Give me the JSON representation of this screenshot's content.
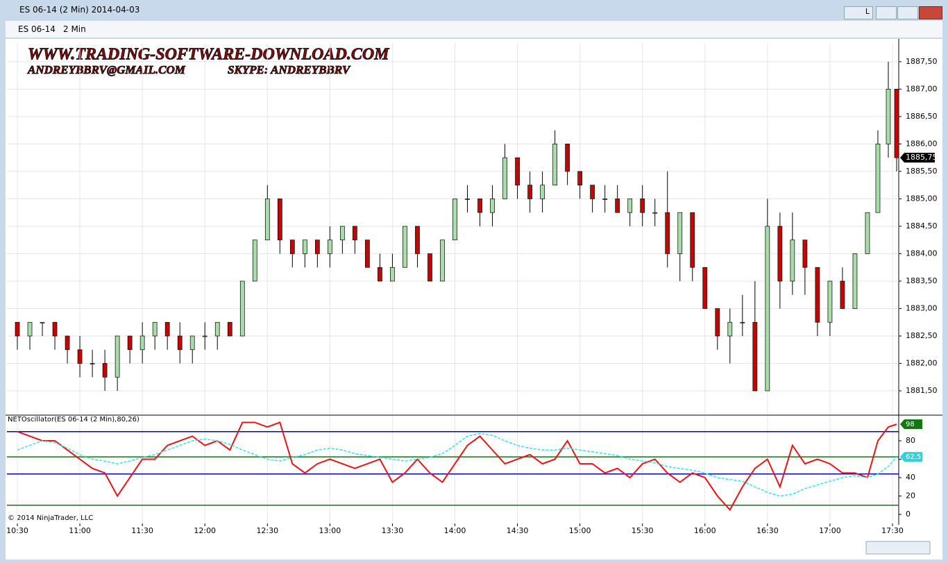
{
  "window": {
    "title": "ES 06-14 (2 Min)  2014-04-03",
    "instrument": "ES 06-14",
    "period": "2 Min",
    "lock": "L"
  },
  "watermark": {
    "line1": "WWW.TRADING-SOFTWARE-DOWNLOAD.COM",
    "line2a": "ANDREYBBRV@GMAIL.COM",
    "line2b": "SKYPE: ANDREYBBRV"
  },
  "copyright": "© 2014 NinjaTrader, LLC",
  "chart_data": [
    {
      "type": "candlestick",
      "up_color": "#a8dca8",
      "down_color": "#cc0000",
      "last_label": "1885,75",
      "x": [
        0,
        6,
        12,
        18,
        24,
        30,
        36,
        42,
        48,
        54,
        60,
        66,
        72,
        78,
        84,
        90,
        96,
        102,
        108,
        114,
        120,
        126,
        132,
        138,
        144,
        150,
        156,
        162,
        168,
        174,
        180,
        186,
        192,
        198,
        204,
        210,
        216,
        222,
        228,
        234,
        240,
        246,
        252,
        258,
        264,
        270,
        276,
        282,
        288,
        294,
        300,
        306,
        312,
        318,
        324,
        330,
        336,
        342,
        348,
        354,
        360,
        366,
        372,
        378,
        384,
        390,
        396,
        402,
        408,
        413,
        418,
        422
      ],
      "open": [
        1882.75,
        1882.5,
        1882.75,
        1882.75,
        1882.5,
        1882.25,
        1882.0,
        1882.0,
        1881.75,
        1882.5,
        1882.25,
        1882.5,
        1882.75,
        1882.5,
        1882.25,
        1882.5,
        1882.5,
        1882.75,
        1882.5,
        1883.5,
        1884.25,
        1885.0,
        1884.25,
        1884.0,
        1884.25,
        1884.0,
        1884.25,
        1884.5,
        1884.25,
        1883.75,
        1883.5,
        1883.75,
        1884.5,
        1884.0,
        1883.5,
        1884.25,
        1885.0,
        1885.0,
        1884.75,
        1885.0,
        1885.75,
        1885.25,
        1885.0,
        1885.25,
        1886.0,
        1885.5,
        1885.25,
        1885.0,
        1885.0,
        1884.75,
        1885.0,
        1884.75,
        1884.75,
        1884.0,
        1884.75,
        1883.75,
        1883.0,
        1882.5,
        1882.75,
        1882.75,
        1881.5,
        1884.5,
        1883.5,
        1884.25,
        1883.75,
        1882.75,
        1883.5,
        1883.0,
        1884.0,
        1884.75,
        1886.0,
        1887.0
      ],
      "high": [
        1882.75,
        1882.75,
        1882.75,
        1882.75,
        1882.5,
        1882.5,
        1882.25,
        1882.25,
        1882.5,
        1882.5,
        1882.75,
        1882.75,
        1882.75,
        1882.75,
        1882.5,
        1882.75,
        1882.75,
        1882.75,
        1883.5,
        1884.25,
        1885.25,
        1885.0,
        1884.25,
        1884.25,
        1884.25,
        1884.5,
        1884.5,
        1884.5,
        1884.25,
        1884.0,
        1884.0,
        1884.5,
        1884.5,
        1884.0,
        1884.25,
        1885.0,
        1885.25,
        1885.0,
        1885.25,
        1886.0,
        1885.75,
        1885.5,
        1885.5,
        1886.25,
        1886.0,
        1885.5,
        1885.25,
        1885.25,
        1885.25,
        1885.0,
        1885.25,
        1885.0,
        1885.5,
        1884.75,
        1884.75,
        1883.75,
        1883.0,
        1883.0,
        1883.25,
        1883.5,
        1885.0,
        1884.75,
        1884.75,
        1884.25,
        1883.75,
        1883.5,
        1883.75,
        1884.0,
        1884.75,
        1886.25,
        1887.5,
        1887.0
      ],
      "low": [
        1882.25,
        1882.25,
        1882.5,
        1882.25,
        1882.0,
        1881.75,
        1881.75,
        1881.5,
        1881.5,
        1882.0,
        1882.0,
        1882.25,
        1882.25,
        1882.0,
        1882.0,
        1882.25,
        1882.25,
        1882.5,
        1882.5,
        1883.5,
        1884.25,
        1884.0,
        1883.75,
        1883.75,
        1883.75,
        1883.75,
        1884.0,
        1884.0,
        1883.75,
        1883.5,
        1883.5,
        1883.75,
        1883.75,
        1883.5,
        1883.5,
        1884.25,
        1884.75,
        1884.5,
        1884.5,
        1885.0,
        1885.0,
        1884.75,
        1884.75,
        1885.25,
        1885.25,
        1885.0,
        1884.75,
        1884.75,
        1884.75,
        1884.5,
        1884.5,
        1884.5,
        1883.75,
        1883.5,
        1883.5,
        1883.0,
        1882.25,
        1882.0,
        1882.5,
        1881.5,
        1881.5,
        1883.0,
        1883.25,
        1883.25,
        1882.5,
        1882.5,
        1883.0,
        1883.0,
        1884.0,
        1884.75,
        1885.75,
        1885.5
      ],
      "close": [
        1882.5,
        1882.75,
        1882.75,
        1882.5,
        1882.25,
        1882.0,
        1882.0,
        1881.75,
        1882.5,
        1882.25,
        1882.5,
        1882.75,
        1882.5,
        1882.25,
        1882.5,
        1882.5,
        1882.75,
        1882.5,
        1883.5,
        1884.25,
        1885.0,
        1884.25,
        1884.0,
        1884.25,
        1884.0,
        1884.25,
        1884.5,
        1884.25,
        1883.75,
        1883.5,
        1883.75,
        1884.5,
        1884.0,
        1883.5,
        1884.25,
        1885.0,
        1885.0,
        1884.75,
        1885.0,
        1885.75,
        1885.25,
        1885.0,
        1885.25,
        1886.0,
        1885.5,
        1885.25,
        1885.0,
        1885.0,
        1884.75,
        1885.0,
        1884.75,
        1884.75,
        1884.0,
        1884.75,
        1883.75,
        1883.0,
        1882.5,
        1882.75,
        1882.75,
        1881.5,
        1884.5,
        1883.5,
        1884.25,
        1883.75,
        1882.75,
        1883.5,
        1883.0,
        1884.0,
        1884.75,
        1886.0,
        1887.0,
        1885.75
      ],
      "xlim": [
        -5,
        423
      ],
      "ylim": [
        1881.07,
        1887.84
      ],
      "yticks": [
        {
          "value": 1881.5,
          "label": "1881,50"
        },
        {
          "value": 1882,
          "label": "1882,00"
        },
        {
          "value": 1882.5,
          "label": "1882,50"
        },
        {
          "value": 1883,
          "label": "1883,00"
        },
        {
          "value": 1883.5,
          "label": "1883,50"
        },
        {
          "value": 1884,
          "label": "1884,00"
        },
        {
          "value": 1884.5,
          "label": "1884,50"
        },
        {
          "value": 1885,
          "label": "1885,00"
        },
        {
          "value": 1885.5,
          "label": "1885,50"
        },
        {
          "value": 1886,
          "label": "1886,00"
        },
        {
          "value": 1886.5,
          "label": "1886,50"
        },
        {
          "value": 1887,
          "label": "1887,00"
        },
        {
          "value": 1887.5,
          "label": "1887,50"
        }
      ],
      "grid": true
    },
    {
      "type": "line",
      "title": "NETOscillator(ES 06-14 (2 Min),80,26)",
      "x": [
        0,
        6,
        12,
        18,
        24,
        30,
        36,
        42,
        48,
        54,
        60,
        66,
        72,
        78,
        84,
        90,
        96,
        102,
        108,
        114,
        120,
        126,
        132,
        138,
        144,
        150,
        156,
        162,
        168,
        174,
        180,
        186,
        192,
        198,
        204,
        210,
        216,
        222,
        228,
        234,
        240,
        246,
        252,
        258,
        264,
        270,
        276,
        282,
        288,
        294,
        300,
        306,
        312,
        318,
        324,
        330,
        336,
        342,
        348,
        354,
        360,
        366,
        372,
        378,
        384,
        390,
        396,
        402,
        408,
        413,
        418,
        422
      ],
      "series": [
        {
          "name": "NETOscillator",
          "color": "#ee1111",
          "values": [
            90,
            85,
            80,
            80,
            70,
            60,
            50,
            45,
            20,
            40,
            60,
            60,
            75,
            80,
            85,
            75,
            80,
            70,
            100,
            100,
            95,
            100,
            55,
            45,
            55,
            60,
            55,
            50,
            55,
            60,
            35,
            45,
            60,
            45,
            35,
            55,
            75,
            85,
            70,
            55,
            60,
            65,
            55,
            60,
            80,
            55,
            55,
            45,
            50,
            40,
            55,
            60,
            45,
            35,
            45,
            40,
            20,
            5,
            30,
            50,
            60,
            30,
            75,
            55,
            60,
            55,
            45,
            45,
            40,
            80,
            95,
            98
          ]
        },
        {
          "name": "Signal",
          "color": "#33e0f0",
          "dash": true,
          "end_label": "62,5",
          "values": [
            70,
            75,
            80,
            78,
            72,
            65,
            60,
            58,
            55,
            58,
            62,
            65,
            70,
            75,
            80,
            82,
            80,
            76,
            70,
            65,
            60,
            58,
            62,
            65,
            70,
            72,
            70,
            66,
            64,
            62,
            60,
            58,
            60,
            62,
            66,
            75,
            85,
            88,
            86,
            80,
            75,
            72,
            70,
            70,
            72,
            70,
            68,
            66,
            64,
            60,
            58,
            56,
            52,
            50,
            48,
            45,
            40,
            38,
            36,
            30,
            24,
            20,
            22,
            28,
            32,
            36,
            40,
            42,
            40,
            44,
            52,
            62.5
          ]
        }
      ],
      "levels": [
        {
          "value": 90,
          "color": "#0000cc"
        },
        {
          "value": 62.5,
          "color": "#117711"
        },
        {
          "value": 44,
          "color": "#0000cc"
        },
        {
          "value": 10,
          "color": "#117711"
        }
      ],
      "xlim": [
        -5,
        423
      ],
      "ylim": [
        -8.3,
        106.4
      ],
      "yticks": [
        0,
        20,
        40,
        60,
        80
      ],
      "xticks": [
        {
          "value": 0,
          "label": "10:30"
        },
        {
          "value": 30,
          "label": "11:00"
        },
        {
          "value": 60,
          "label": "11:30"
        },
        {
          "value": 90,
          "label": "12:00"
        },
        {
          "value": 120,
          "label": "12:30"
        },
        {
          "value": 150,
          "label": "13:00"
        },
        {
          "value": 180,
          "label": "13:30"
        },
        {
          "value": 210,
          "label": "14:00"
        },
        {
          "value": 240,
          "label": "14:30"
        },
        {
          "value": 270,
          "label": "15:00"
        },
        {
          "value": 300,
          "label": "15:30"
        },
        {
          "value": 330,
          "label": "16:00"
        },
        {
          "value": 360,
          "label": "16:30"
        },
        {
          "value": 390,
          "label": "17:00"
        },
        {
          "value": 420,
          "label": "17:30"
        }
      ]
    }
  ]
}
